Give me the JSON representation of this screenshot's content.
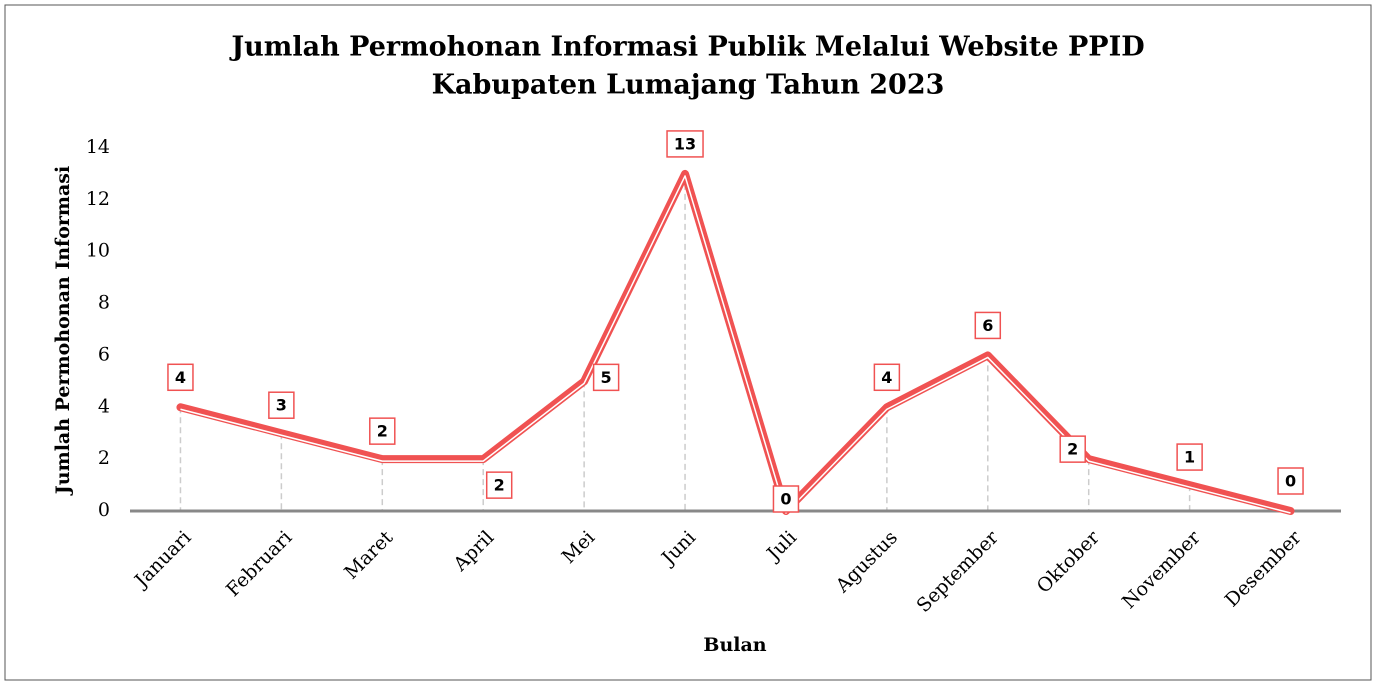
{
  "chart_data": {
    "type": "line",
    "title": [
      "Jumlah Permohonan Informasi Publik Melalui Website PPID",
      "Kabupaten Lumajang Tahun 2023"
    ],
    "x_label": "Bulan",
    "y_label": "Jumlah Permohonan Informasi",
    "categories": [
      "Januari",
      "Februari",
      "Maret",
      "April",
      "Mei",
      "Juni",
      "Juli",
      "Agustus",
      "September",
      "Oktober",
      "November",
      "Desember"
    ],
    "series": [
      {
        "name": "Jumlah Permohonan Informasi",
        "color": "#f05252",
        "values": [
          4,
          3,
          2,
          2,
          5,
          13,
          0,
          4,
          6,
          2,
          1,
          0
        ]
      }
    ],
    "ylim": [
      0,
      14
    ],
    "yticks": [
      0,
      2,
      4,
      6,
      8,
      10,
      12,
      14
    ],
    "grid": false
  }
}
